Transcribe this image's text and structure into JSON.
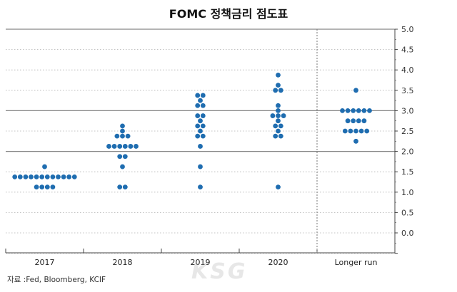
{
  "title": "FOMC 정책금리 점도표",
  "source": "자료 :Fed, Bloomberg, KCIF",
  "watermark": "KSG",
  "colors": {
    "dot": "#1f6db0",
    "solid_grid": "#888888",
    "dotted_grid": "#b0b0b0",
    "axis": "#444444"
  },
  "chart_data": {
    "type": "scatter",
    "title": "FOMC 정책금리 점도표",
    "categories": [
      "2017",
      "2018",
      "2019",
      "2020",
      "Longer run"
    ],
    "ylim": [
      -0.5,
      5.0
    ],
    "yticks": [
      "5.0",
      "4.5",
      "4.0",
      "3.5",
      "3.0",
      "2.5",
      "2.0",
      "1.5",
      "1.0",
      "0.5",
      "0.0"
    ],
    "ytick_values": [
      5.0,
      4.5,
      4.0,
      3.5,
      3.0,
      2.5,
      2.0,
      1.5,
      1.0,
      0.5,
      0.0
    ],
    "solid_lines": [
      5.0,
      3.0,
      2.0
    ],
    "divider_before": "Longer run",
    "dots": [
      {
        "category": "2017",
        "rate": 1.625,
        "count": 1
      },
      {
        "category": "2017",
        "rate": 1.375,
        "count": 12
      },
      {
        "category": "2017",
        "rate": 1.125,
        "count": 4
      },
      {
        "category": "2018",
        "rate": 2.625,
        "count": 1
      },
      {
        "category": "2018",
        "rate": 2.5,
        "count": 1
      },
      {
        "category": "2018",
        "rate": 2.375,
        "count": 3
      },
      {
        "category": "2018",
        "rate": 2.125,
        "count": 6
      },
      {
        "category": "2018",
        "rate": 1.875,
        "count": 2
      },
      {
        "category": "2018",
        "rate": 1.625,
        "count": 1
      },
      {
        "category": "2018",
        "rate": 1.125,
        "count": 2
      },
      {
        "category": "2019",
        "rate": 3.375,
        "count": 2
      },
      {
        "category": "2019",
        "rate": 3.25,
        "count": 1
      },
      {
        "category": "2019",
        "rate": 3.125,
        "count": 2
      },
      {
        "category": "2019",
        "rate": 2.875,
        "count": 2
      },
      {
        "category": "2019",
        "rate": 2.75,
        "count": 1
      },
      {
        "category": "2019",
        "rate": 2.625,
        "count": 2
      },
      {
        "category": "2019",
        "rate": 2.5,
        "count": 1
      },
      {
        "category": "2019",
        "rate": 2.375,
        "count": 2
      },
      {
        "category": "2019",
        "rate": 2.125,
        "count": 1
      },
      {
        "category": "2019",
        "rate": 1.625,
        "count": 1
      },
      {
        "category": "2019",
        "rate": 1.125,
        "count": 1
      },
      {
        "category": "2020",
        "rate": 3.875,
        "count": 1
      },
      {
        "category": "2020",
        "rate": 3.625,
        "count": 1
      },
      {
        "category": "2020",
        "rate": 3.5,
        "count": 2
      },
      {
        "category": "2020",
        "rate": 3.125,
        "count": 1
      },
      {
        "category": "2020",
        "rate": 3.0,
        "count": 1
      },
      {
        "category": "2020",
        "rate": 2.875,
        "count": 3
      },
      {
        "category": "2020",
        "rate": 2.75,
        "count": 1
      },
      {
        "category": "2020",
        "rate": 2.625,
        "count": 2
      },
      {
        "category": "2020",
        "rate": 2.5,
        "count": 1
      },
      {
        "category": "2020",
        "rate": 2.375,
        "count": 2
      },
      {
        "category": "2020",
        "rate": 1.125,
        "count": 1
      },
      {
        "category": "Longer run",
        "rate": 3.5,
        "count": 1
      },
      {
        "category": "Longer run",
        "rate": 3.0,
        "count": 6
      },
      {
        "category": "Longer run",
        "rate": 2.75,
        "count": 4
      },
      {
        "category": "Longer run",
        "rate": 2.5,
        "count": 5
      },
      {
        "category": "Longer run",
        "rate": 2.25,
        "count": 1
      }
    ]
  }
}
